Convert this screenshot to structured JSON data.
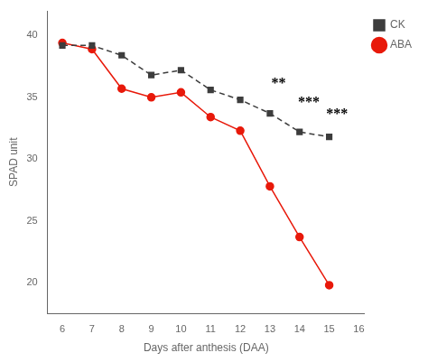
{
  "chart_data": {
    "type": "line",
    "x": [
      6,
      7,
      8,
      9,
      10,
      11,
      12,
      13,
      14,
      15
    ],
    "series": [
      {
        "name": "CK",
        "color": "#3d3d3d",
        "marker": "square",
        "line_style": "dashed",
        "values": [
          39.2,
          39.2,
          38.4,
          36.8,
          37.2,
          35.6,
          34.8,
          33.7,
          32.2,
          31.8
        ]
      },
      {
        "name": "ABA",
        "color": "#e8190a",
        "marker": "circle",
        "line_style": "solid",
        "values": [
          39.4,
          38.9,
          35.7,
          35.0,
          35.4,
          33.4,
          32.3,
          27.8,
          23.7,
          19.8
        ]
      }
    ],
    "xlabel": "Days after anthesis (DAA)",
    "ylabel": "SPAD unit",
    "xlim": [
      5.5,
      16.2
    ],
    "ylim": [
      17.5,
      42
    ],
    "xticks": [
      6,
      7,
      8,
      9,
      10,
      11,
      12,
      13,
      14,
      15,
      16
    ],
    "yticks": [
      20,
      25,
      30,
      35,
      40
    ],
    "annotations": [
      {
        "text": "**",
        "x": 13.05,
        "y": 35.5
      },
      {
        "text": "***",
        "x": 13.95,
        "y": 34.0
      },
      {
        "text": "***",
        "x": 14.9,
        "y": 33.0
      }
    ],
    "grid": false,
    "legend": "upper right"
  }
}
